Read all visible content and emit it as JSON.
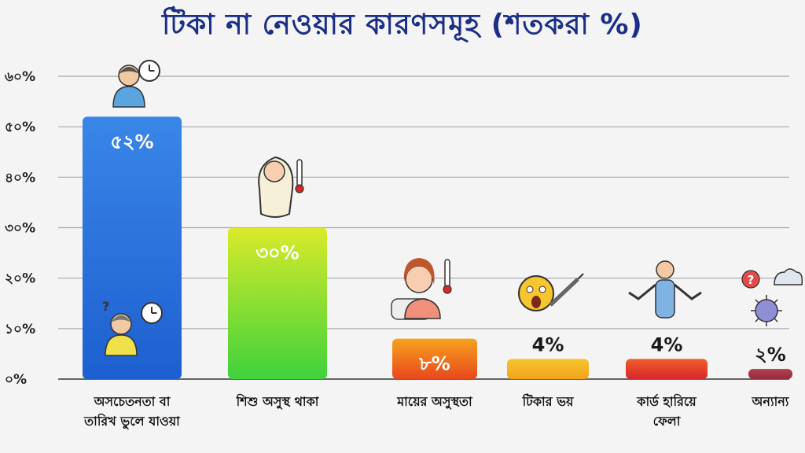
{
  "chart_data": {
    "type": "bar",
    "title": "টিকা না নেওয়ার কারণসমূহ (শতকরা %)",
    "categories": [
      [
        "অসচেতনতা বা",
        "তারিখ ভুলে যাওয়া"
      ],
      [
        "শিশু অসুস্থ থাকা"
      ],
      [
        "মায়ের অসুস্থতা"
      ],
      [
        "টিকার ভয়"
      ],
      [
        "কার্ড হারিয়ে",
        "ফেলা"
      ],
      [
        "অন্যান্য"
      ]
    ],
    "values": [
      52,
      30,
      8,
      4,
      4,
      2
    ],
    "value_labels": [
      "৫২%",
      "৩০%",
      "৮%",
      "4%",
      "4%",
      "২%"
    ],
    "ylim": [
      0,
      60
    ],
    "yticks": [
      0,
      10,
      20,
      30,
      40,
      50,
      60
    ],
    "ytick_labels": [
      "০%",
      "১০%",
      "২০%",
      "৩০%",
      "৪০%",
      "৫০%",
      "৬০%"
    ],
    "grid": true,
    "bar_colors": [
      [
        "#3a86e8",
        "#1d5fd0"
      ],
      [
        "#d9ea2a",
        "#3fd23c"
      ],
      [
        "#f6a21e",
        "#e8471c"
      ],
      [
        "#f7c52d",
        "#f2a21a"
      ],
      [
        "#f0602a",
        "#d8262c"
      ],
      [
        "#b3414f",
        "#932a3c"
      ]
    ],
    "icons": [
      [
        "person-clock-icon",
        "confused-person-clock-icon"
      ],
      [
        "baby-thermometer-icon"
      ],
      [
        "sick-mother-icon"
      ],
      [
        "scared-face-syringe-icon"
      ],
      [
        "shrugging-person-icon"
      ],
      [
        "question-cloud-virus-icon"
      ]
    ]
  }
}
